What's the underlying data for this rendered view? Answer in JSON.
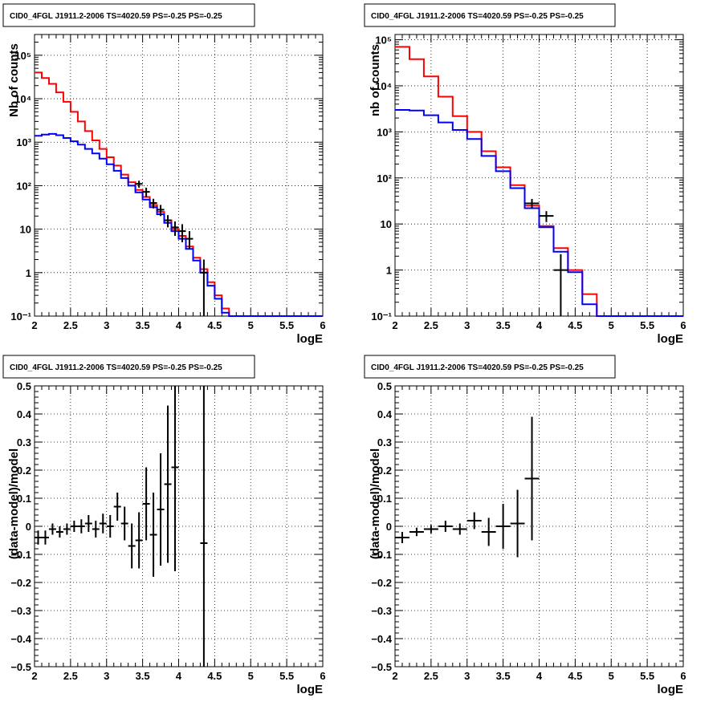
{
  "chart_data": [
    {
      "type": "line",
      "title": "CID0_4FGL J1911.2-2006 TS=4020.59 PS=-0.25 PS=-0.25",
      "xlabel": "logE",
      "ylabel": "Nb of counts",
      "xlim": [
        2,
        6
      ],
      "ylim": [
        0.1,
        300000
      ],
      "yscale": "log",
      "x_ticks": [
        "2",
        "2.5",
        "3",
        "3.5",
        "4",
        "4.5",
        "5",
        "5.5",
        "6"
      ],
      "y_ticks": [
        "10⁻¹",
        "1",
        "10",
        "10²",
        "10³",
        "10⁴",
        "10⁵"
      ],
      "grid": true,
      "bin_edges": [
        2.0,
        2.1,
        2.2,
        2.3,
        2.4,
        2.5,
        2.6,
        2.7,
        2.8,
        2.9,
        3.0,
        3.1,
        3.2,
        3.3,
        3.4,
        3.5,
        3.6,
        3.7,
        3.8,
        3.9,
        4.0,
        4.1,
        4.2,
        4.3,
        4.4,
        4.5,
        4.6,
        4.7,
        4.8,
        4.9,
        5.0,
        5.1,
        5.2,
        5.3,
        5.4,
        5.5,
        5.6,
        5.7,
        5.8,
        5.9,
        6.0
      ],
      "series": [
        {
          "color": "#ff0000",
          "style": "step",
          "values": [
            40000,
            30000,
            22000,
            14000,
            8500,
            5000,
            3000,
            1800,
            1100,
            700,
            450,
            290,
            180,
            120,
            80,
            55,
            36,
            25,
            16,
            10,
            7,
            4,
            2.2,
            1.2,
            0.6,
            0.3,
            0.15,
            0.1,
            0.1,
            0.1,
            0.1,
            0.1,
            0.1,
            0.1,
            0.1,
            0.1,
            0.1,
            0.1,
            0.1,
            0.1
          ]
        },
        {
          "color": "#0000ff",
          "style": "step",
          "values": [
            1400,
            1500,
            1550,
            1450,
            1250,
            1050,
            880,
            700,
            550,
            420,
            310,
            220,
            150,
            100,
            70,
            48,
            32,
            22,
            14,
            9,
            6,
            3.5,
            1.9,
            1.0,
            0.5,
            0.25,
            0.12,
            0.1,
            0.1,
            0.1,
            0.1,
            0.1,
            0.1,
            0.1,
            0.1,
            0.1,
            0.1,
            0.1,
            0.1,
            0.1
          ]
        }
      ],
      "data_points": {
        "color": "#000000",
        "x": [
          3.45,
          3.55,
          3.65,
          3.75,
          3.85,
          3.95,
          4.05,
          4.15,
          4.35
        ],
        "y": [
          110,
          72,
          40,
          28,
          16,
          11,
          9,
          6,
          1
        ],
        "xerr": 0.05,
        "ylo": [
          90,
          55,
          30,
          20,
          11,
          7,
          5,
          3.5,
          0.1
        ],
        "yhi": [
          130,
          90,
          50,
          36,
          21,
          15,
          13,
          9,
          2
        ]
      }
    },
    {
      "type": "line",
      "title": "CID0_4FGL J1911.2-2006 TS=4020.59 PS=-0.25 PS=-0.25",
      "xlabel": "logE",
      "ylabel": "nb of counts",
      "xlim": [
        2,
        6
      ],
      "ylim": [
        0.1,
        130000
      ],
      "yscale": "log",
      "x_ticks": [
        "2",
        "2.5",
        "3",
        "3.5",
        "4",
        "4.5",
        "5",
        "5.5",
        "6"
      ],
      "y_ticks": [
        "10⁻¹",
        "1",
        "10",
        "10²",
        "10³",
        "10⁴",
        "10⁵"
      ],
      "grid": true,
      "bin_edges": [
        2.0,
        2.2,
        2.4,
        2.6,
        2.8,
        3.0,
        3.2,
        3.4,
        3.6,
        3.8,
        4.0,
        4.2,
        4.4,
        4.6,
        4.8,
        5.0,
        5.2,
        5.4,
        5.6,
        5.8,
        6.0
      ],
      "series": [
        {
          "color": "#ff0000",
          "style": "step",
          "values": [
            70000,
            38000,
            16000,
            5800,
            2200,
            1000,
            380,
            170,
            70,
            25,
            9,
            3,
            1,
            0.3,
            0.1,
            0.1,
            0.1,
            0.1,
            0.1,
            0.1
          ]
        },
        {
          "color": "#0000ff",
          "style": "step",
          "values": [
            3000,
            2900,
            2300,
            1600,
            1100,
            700,
            300,
            140,
            60,
            22,
            8.5,
            2.5,
            0.9,
            0.18,
            0.1,
            0.1,
            0.1,
            0.1,
            0.1,
            0.1
          ]
        }
      ],
      "data_points": {
        "color": "#000000",
        "x": [
          3.9,
          4.1,
          4.3
        ],
        "y": [
          28,
          15,
          1
        ],
        "xerr": 0.1,
        "ylo": [
          22,
          11,
          0.1
        ],
        "yhi": [
          35,
          19,
          2.2
        ]
      }
    },
    {
      "type": "scatter",
      "title": "CID0_4FGL J1911.2-2006 TS=4020.59 PS=-0.25 PS=-0.25",
      "xlabel": "logE",
      "ylabel": "(data-model)/model",
      "xlim": [
        2,
        6
      ],
      "ylim": [
        -0.5,
        0.5
      ],
      "x_ticks": [
        "2",
        "2.5",
        "3",
        "3.5",
        "4",
        "4.5",
        "5",
        "5.5",
        "6"
      ],
      "y_ticks": [
        "−0.5",
        "−0.4",
        "−0.3",
        "−0.2",
        "−0.1",
        "0",
        "0.1",
        "0.2",
        "0.3",
        "0.4",
        "0.5"
      ],
      "grid": true,
      "data_points": {
        "color": "#000000",
        "xerr": 0.05,
        "x": [
          2.05,
          2.15,
          2.25,
          2.35,
          2.45,
          2.55,
          2.65,
          2.75,
          2.85,
          2.95,
          3.05,
          3.15,
          3.25,
          3.35,
          3.45,
          3.55,
          3.65,
          3.75,
          3.85,
          3.95,
          4.35
        ],
        "y": [
          -0.04,
          -0.04,
          -0.01,
          -0.02,
          -0.01,
          0.0,
          0.0,
          0.01,
          -0.01,
          0.01,
          0.0,
          0.07,
          0.01,
          -0.07,
          -0.05,
          0.08,
          -0.03,
          0.06,
          0.15,
          0.21,
          -0.06
        ],
        "yerr": [
          0.025,
          0.025,
          0.02,
          0.02,
          0.02,
          0.02,
          0.025,
          0.03,
          0.03,
          0.035,
          0.04,
          0.05,
          0.06,
          0.08,
          0.1,
          0.13,
          0.15,
          0.2,
          0.28,
          0.37,
          0.9
        ]
      }
    },
    {
      "type": "scatter",
      "title": "CID0_4FGL J1911.2-2006 TS=4020.59 PS=-0.25 PS=-0.25",
      "xlabel": "logE",
      "ylabel": "(data-model)/model",
      "xlim": [
        2,
        6
      ],
      "ylim": [
        -0.5,
        0.5
      ],
      "x_ticks": [
        "2",
        "2.5",
        "3",
        "3.5",
        "4",
        "4.5",
        "5",
        "5.5",
        "6"
      ],
      "y_ticks": [
        "−0.5",
        "−0.4",
        "−0.3",
        "−0.2",
        "−0.1",
        "0",
        "0.1",
        "0.2",
        "0.3",
        "0.4",
        "0.5"
      ],
      "grid": true,
      "data_points": {
        "color": "#000000",
        "xerr": 0.1,
        "x": [
          2.1,
          2.3,
          2.5,
          2.7,
          2.9,
          3.1,
          3.3,
          3.5,
          3.7,
          3.9
        ],
        "y": [
          -0.04,
          -0.02,
          -0.01,
          0.0,
          -0.01,
          0.02,
          -0.02,
          0.0,
          0.01,
          0.17
        ],
        "yerr": [
          0.02,
          0.015,
          0.015,
          0.02,
          0.02,
          0.03,
          0.05,
          0.08,
          0.12,
          0.22
        ]
      }
    }
  ]
}
